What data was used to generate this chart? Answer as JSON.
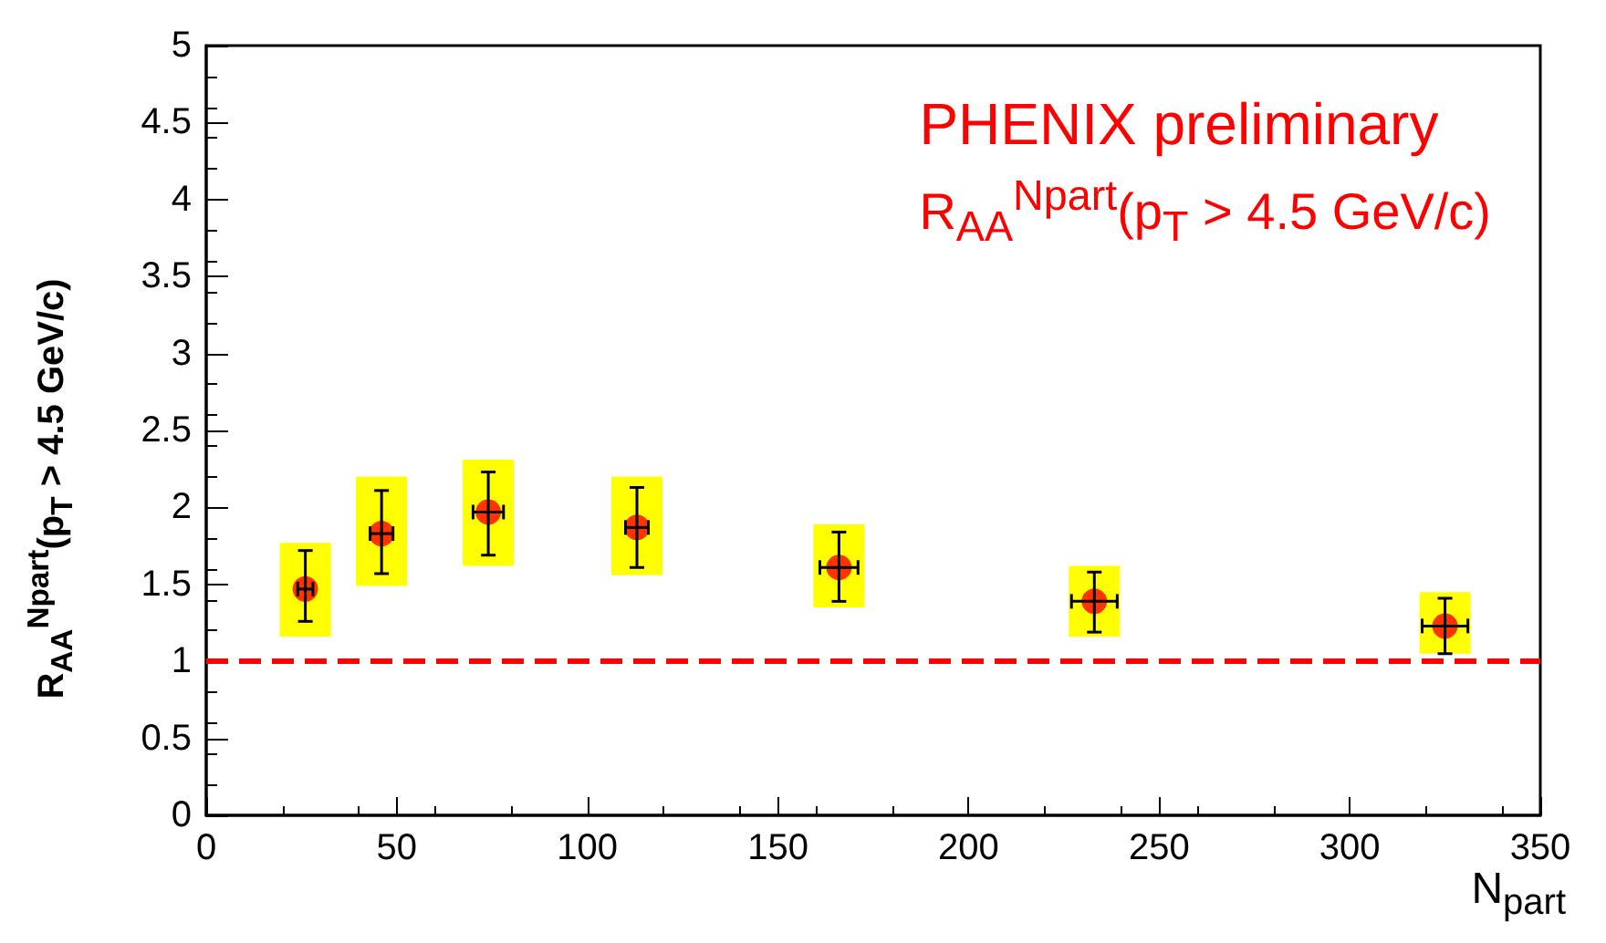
{
  "chart_data": {
    "type": "scatter",
    "xlabel": "N$_{part}$",
    "ylabel": "R$_{AA}$$^{Npart}$(p$_{T}$ > 4.5 GeV/c)",
    "annotations": [
      "PHENIX preliminary",
      "R$_{AA}$$^{Npart}$(p$_{T}$ > 4.5 GeV/c)"
    ],
    "xlim": [
      0,
      350
    ],
    "xticks": [
      0,
      50,
      100,
      150,
      200,
      250,
      300,
      350
    ],
    "ylim": [
      0,
      5
    ],
    "yticks": [
      0,
      0.5,
      1,
      1.5,
      2,
      2.5,
      3,
      3.5,
      4,
      4.5,
      5
    ],
    "ref_lines": [
      {
        "axis": "y",
        "value": 1,
        "color": "#ff0000",
        "line_style": "dashed"
      }
    ],
    "series": [
      {
        "type": "bar",
        "color": "#ffff00",
        "x": [
          26,
          46,
          74,
          113,
          166,
          233,
          325
        ],
        "base": [
          1.16,
          1.49,
          1.62,
          1.56,
          1.35,
          1.16,
          1.05
        ],
        "values": [
          0.61,
          0.71,
          0.69,
          0.64,
          0.54,
          0.46,
          0.4
        ]
      },
      {
        "color": "#ff0000",
        "marker": "circle",
        "x": [
          26,
          46,
          74,
          113,
          166,
          233,
          325
        ],
        "values": [
          1.47,
          1.83,
          1.97,
          1.87,
          1.61,
          1.39,
          1.23
        ],
        "errors": [
          [
            1.26,
            1.72
          ],
          [
            1.57,
            2.11
          ],
          [
            1.69,
            2.23
          ],
          [
            1.61,
            2.13
          ],
          [
            1.39,
            1.84
          ],
          [
            1.19,
            1.58
          ],
          [
            1.05,
            1.41
          ]
        ],
        "xerrors": [
          2,
          3,
          4,
          3,
          5,
          6,
          6
        ]
      }
    ]
  }
}
